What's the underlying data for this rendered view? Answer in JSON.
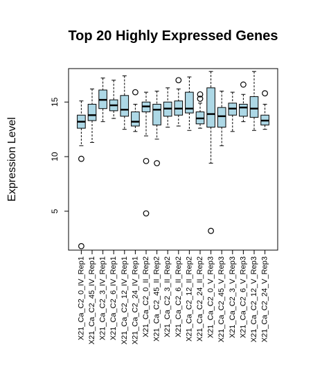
{
  "chart_data": {
    "type": "box",
    "title": "Top 20 Highly Expressed Genes",
    "xlabel": "",
    "ylabel": "Expression Level",
    "ylim": [
      1.5,
      18
    ],
    "yticks": [
      5,
      10,
      15
    ],
    "grid": false,
    "box_fill": "#add8e6",
    "categories": [
      "X21_Ca_C2_0_IV_Rep1",
      "X21_Ca_C2_45_IV_Rep1",
      "X21_Ca_C2_3_IV_Rep1",
      "X21_Ca_C2_6_IV_Rep1",
      "X21_Ca_C2_12_IV_Rep1",
      "X21_Ca_C2_24_IV_Rep1",
      "X21_Ca_C2_0_II_Rep2",
      "X21_Ca_C2_45_II_Rep2",
      "X21_Ca_C2_3_II_Rep2",
      "X21_Ca_C2_6_II_Rep2",
      "X21_Ca_C2_12_II_Rep2",
      "X21_Ca_C2_24_II_Rep2",
      "X21_Ca_C2_0_V_Rep3",
      "X21_Ca_C2_45_V_Rep3",
      "X21_Ca_C2_3_V_Rep3",
      "X21_Ca_C2_6_V_Rep3",
      "X21_Ca_C2_12_V_Rep3",
      "X21_Ca_C2_24_V_Rep3"
    ],
    "boxes": [
      {
        "whisker_low": 11.0,
        "q1": 12.6,
        "median": 13.2,
        "q3": 13.8,
        "whisker_high": 15.1,
        "outliers": [
          9.8,
          1.8
        ]
      },
      {
        "whisker_low": 11.3,
        "q1": 13.3,
        "median": 13.8,
        "q3": 14.8,
        "whisker_high": 16.2,
        "outliers": []
      },
      {
        "whisker_low": 13.2,
        "q1": 14.4,
        "median": 15.2,
        "q3": 16.1,
        "whisker_high": 17.2,
        "outliers": []
      },
      {
        "whisker_low": 13.5,
        "q1": 14.2,
        "median": 14.7,
        "q3": 15.2,
        "whisker_high": 17.0,
        "outliers": []
      },
      {
        "whisker_low": 12.5,
        "q1": 13.7,
        "median": 14.3,
        "q3": 15.6,
        "whisker_high": 17.4,
        "outliers": []
      },
      {
        "whisker_low": 12.3,
        "q1": 12.8,
        "median": 13.2,
        "q3": 14.1,
        "whisker_high": 14.8,
        "outliers": [
          15.9
        ]
      },
      {
        "whisker_low": 11.9,
        "q1": 14.1,
        "median": 14.6,
        "q3": 15.0,
        "whisker_high": 15.9,
        "outliers": [
          9.6,
          4.8
        ]
      },
      {
        "whisker_low": 11.6,
        "q1": 12.9,
        "median": 14.3,
        "q3": 14.8,
        "whisker_high": 16.0,
        "outliers": [
          9.4
        ]
      },
      {
        "whisker_low": 12.7,
        "q1": 13.7,
        "median": 14.4,
        "q3": 15.0,
        "whisker_high": 16.3,
        "outliers": []
      },
      {
        "whisker_low": 12.8,
        "q1": 13.8,
        "median": 14.4,
        "q3": 15.1,
        "whisker_high": 16.2,
        "outliers": [
          17.0
        ]
      },
      {
        "whisker_low": 12.4,
        "q1": 14.0,
        "median": 14.4,
        "q3": 15.9,
        "whisker_high": 17.3,
        "outliers": []
      },
      {
        "whisker_low": 12.6,
        "q1": 13.0,
        "median": 13.5,
        "q3": 14.1,
        "whisker_high": 14.9,
        "outliers": [
          15.3,
          15.7
        ]
      },
      {
        "whisker_low": 9.4,
        "q1": 12.7,
        "median": 13.9,
        "q3": 16.3,
        "whisker_high": 17.8,
        "outliers": [
          3.2
        ]
      },
      {
        "whisker_low": 11.0,
        "q1": 12.7,
        "median": 13.7,
        "q3": 14.5,
        "whisker_high": 16.0,
        "outliers": []
      },
      {
        "whisker_low": 12.3,
        "q1": 13.8,
        "median": 14.4,
        "q3": 14.9,
        "whisker_high": 15.9,
        "outliers": []
      },
      {
        "whisker_low": 13.2,
        "q1": 13.7,
        "median": 14.5,
        "q3": 14.8,
        "whisker_high": 15.7,
        "outliers": [
          16.6
        ]
      },
      {
        "whisker_low": 12.4,
        "q1": 13.6,
        "median": 14.4,
        "q3": 15.5,
        "whisker_high": 17.8,
        "outliers": []
      },
      {
        "whisker_low": 12.5,
        "q1": 12.9,
        "median": 13.3,
        "q3": 13.8,
        "whisker_high": 14.8,
        "outliers": [
          15.8
        ]
      }
    ]
  }
}
